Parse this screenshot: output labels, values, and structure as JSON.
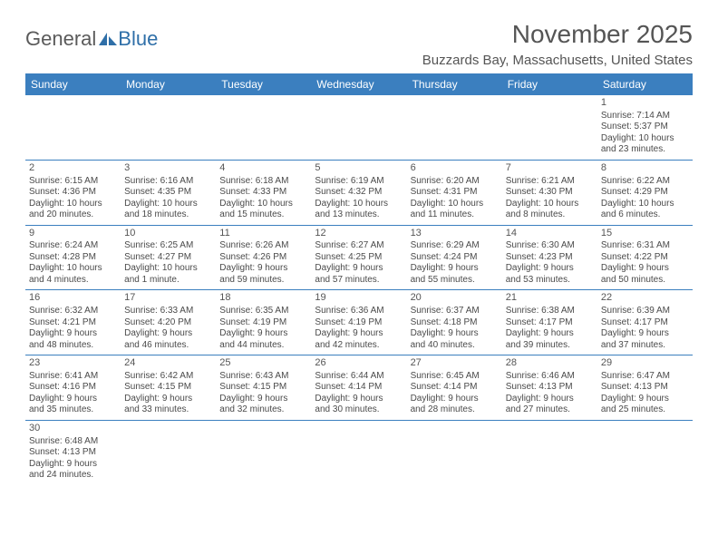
{
  "logo": {
    "text1": "General",
    "text2": "Blue"
  },
  "title": "November 2025",
  "location": "Buzzards Bay, Massachusetts, United States",
  "colors": {
    "header_bg": "#3b7fbf",
    "header_text": "#ffffff",
    "border": "#3b7fbf",
    "text": "#4a4a4a",
    "title_text": "#555555",
    "logo_gray": "#5a5a5a",
    "logo_blue": "#2f6fa8",
    "background": "#ffffff"
  },
  "typography": {
    "title_fontsize": 28,
    "location_fontsize": 15,
    "logo_fontsize": 22,
    "dow_fontsize": 12,
    "daynum_fontsize": 11,
    "body_fontsize": 10
  },
  "days_of_week": [
    "Sunday",
    "Monday",
    "Tuesday",
    "Wednesday",
    "Thursday",
    "Friday",
    "Saturday"
  ],
  "weeks": [
    [
      null,
      null,
      null,
      null,
      null,
      null,
      {
        "n": "1",
        "sr": "Sunrise: 7:14 AM",
        "ss": "Sunset: 5:37 PM",
        "d1": "Daylight: 10 hours",
        "d2": "and 23 minutes."
      }
    ],
    [
      {
        "n": "2",
        "sr": "Sunrise: 6:15 AM",
        "ss": "Sunset: 4:36 PM",
        "d1": "Daylight: 10 hours",
        "d2": "and 20 minutes."
      },
      {
        "n": "3",
        "sr": "Sunrise: 6:16 AM",
        "ss": "Sunset: 4:35 PM",
        "d1": "Daylight: 10 hours",
        "d2": "and 18 minutes."
      },
      {
        "n": "4",
        "sr": "Sunrise: 6:18 AM",
        "ss": "Sunset: 4:33 PM",
        "d1": "Daylight: 10 hours",
        "d2": "and 15 minutes."
      },
      {
        "n": "5",
        "sr": "Sunrise: 6:19 AM",
        "ss": "Sunset: 4:32 PM",
        "d1": "Daylight: 10 hours",
        "d2": "and 13 minutes."
      },
      {
        "n": "6",
        "sr": "Sunrise: 6:20 AM",
        "ss": "Sunset: 4:31 PM",
        "d1": "Daylight: 10 hours",
        "d2": "and 11 minutes."
      },
      {
        "n": "7",
        "sr": "Sunrise: 6:21 AM",
        "ss": "Sunset: 4:30 PM",
        "d1": "Daylight: 10 hours",
        "d2": "and 8 minutes."
      },
      {
        "n": "8",
        "sr": "Sunrise: 6:22 AM",
        "ss": "Sunset: 4:29 PM",
        "d1": "Daylight: 10 hours",
        "d2": "and 6 minutes."
      }
    ],
    [
      {
        "n": "9",
        "sr": "Sunrise: 6:24 AM",
        "ss": "Sunset: 4:28 PM",
        "d1": "Daylight: 10 hours",
        "d2": "and 4 minutes."
      },
      {
        "n": "10",
        "sr": "Sunrise: 6:25 AM",
        "ss": "Sunset: 4:27 PM",
        "d1": "Daylight: 10 hours",
        "d2": "and 1 minute."
      },
      {
        "n": "11",
        "sr": "Sunrise: 6:26 AM",
        "ss": "Sunset: 4:26 PM",
        "d1": "Daylight: 9 hours",
        "d2": "and 59 minutes."
      },
      {
        "n": "12",
        "sr": "Sunrise: 6:27 AM",
        "ss": "Sunset: 4:25 PM",
        "d1": "Daylight: 9 hours",
        "d2": "and 57 minutes."
      },
      {
        "n": "13",
        "sr": "Sunrise: 6:29 AM",
        "ss": "Sunset: 4:24 PM",
        "d1": "Daylight: 9 hours",
        "d2": "and 55 minutes."
      },
      {
        "n": "14",
        "sr": "Sunrise: 6:30 AM",
        "ss": "Sunset: 4:23 PM",
        "d1": "Daylight: 9 hours",
        "d2": "and 53 minutes."
      },
      {
        "n": "15",
        "sr": "Sunrise: 6:31 AM",
        "ss": "Sunset: 4:22 PM",
        "d1": "Daylight: 9 hours",
        "d2": "and 50 minutes."
      }
    ],
    [
      {
        "n": "16",
        "sr": "Sunrise: 6:32 AM",
        "ss": "Sunset: 4:21 PM",
        "d1": "Daylight: 9 hours",
        "d2": "and 48 minutes."
      },
      {
        "n": "17",
        "sr": "Sunrise: 6:33 AM",
        "ss": "Sunset: 4:20 PM",
        "d1": "Daylight: 9 hours",
        "d2": "and 46 minutes."
      },
      {
        "n": "18",
        "sr": "Sunrise: 6:35 AM",
        "ss": "Sunset: 4:19 PM",
        "d1": "Daylight: 9 hours",
        "d2": "and 44 minutes."
      },
      {
        "n": "19",
        "sr": "Sunrise: 6:36 AM",
        "ss": "Sunset: 4:19 PM",
        "d1": "Daylight: 9 hours",
        "d2": "and 42 minutes."
      },
      {
        "n": "20",
        "sr": "Sunrise: 6:37 AM",
        "ss": "Sunset: 4:18 PM",
        "d1": "Daylight: 9 hours",
        "d2": "and 40 minutes."
      },
      {
        "n": "21",
        "sr": "Sunrise: 6:38 AM",
        "ss": "Sunset: 4:17 PM",
        "d1": "Daylight: 9 hours",
        "d2": "and 39 minutes."
      },
      {
        "n": "22",
        "sr": "Sunrise: 6:39 AM",
        "ss": "Sunset: 4:17 PM",
        "d1": "Daylight: 9 hours",
        "d2": "and 37 minutes."
      }
    ],
    [
      {
        "n": "23",
        "sr": "Sunrise: 6:41 AM",
        "ss": "Sunset: 4:16 PM",
        "d1": "Daylight: 9 hours",
        "d2": "and 35 minutes."
      },
      {
        "n": "24",
        "sr": "Sunrise: 6:42 AM",
        "ss": "Sunset: 4:15 PM",
        "d1": "Daylight: 9 hours",
        "d2": "and 33 minutes."
      },
      {
        "n": "25",
        "sr": "Sunrise: 6:43 AM",
        "ss": "Sunset: 4:15 PM",
        "d1": "Daylight: 9 hours",
        "d2": "and 32 minutes."
      },
      {
        "n": "26",
        "sr": "Sunrise: 6:44 AM",
        "ss": "Sunset: 4:14 PM",
        "d1": "Daylight: 9 hours",
        "d2": "and 30 minutes."
      },
      {
        "n": "27",
        "sr": "Sunrise: 6:45 AM",
        "ss": "Sunset: 4:14 PM",
        "d1": "Daylight: 9 hours",
        "d2": "and 28 minutes."
      },
      {
        "n": "28",
        "sr": "Sunrise: 6:46 AM",
        "ss": "Sunset: 4:13 PM",
        "d1": "Daylight: 9 hours",
        "d2": "and 27 minutes."
      },
      {
        "n": "29",
        "sr": "Sunrise: 6:47 AM",
        "ss": "Sunset: 4:13 PM",
        "d1": "Daylight: 9 hours",
        "d2": "and 25 minutes."
      }
    ],
    [
      {
        "n": "30",
        "sr": "Sunrise: 6:48 AM",
        "ss": "Sunset: 4:13 PM",
        "d1": "Daylight: 9 hours",
        "d2": "and 24 minutes."
      },
      null,
      null,
      null,
      null,
      null,
      null
    ]
  ]
}
